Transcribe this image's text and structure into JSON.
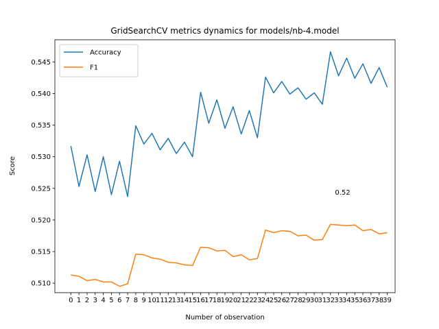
{
  "chart_data": {
    "type": "line",
    "title": "GridSearchCV metrics dynamics for models/nb-4.model",
    "xlabel": "Number of observation",
    "ylabel": "Score",
    "x": [
      0,
      1,
      2,
      3,
      4,
      5,
      6,
      7,
      8,
      9,
      10,
      11,
      12,
      13,
      14,
      15,
      16,
      17,
      18,
      19,
      20,
      21,
      22,
      23,
      24,
      25,
      26,
      27,
      28,
      29,
      30,
      31,
      32,
      33,
      34,
      35,
      36,
      37,
      38,
      39
    ],
    "xticks": [
      "0",
      "1",
      "2",
      "3",
      "4",
      "5",
      "6",
      "7",
      "8",
      "9",
      "10",
      "11",
      "12",
      "13",
      "14",
      "15",
      "16",
      "17",
      "18",
      "19",
      "20",
      "21",
      "22",
      "23",
      "24",
      "25",
      "26",
      "27",
      "28",
      "29",
      "30",
      "31",
      "32",
      "33",
      "34",
      "35",
      "36",
      "37",
      "38",
      "39"
    ],
    "ylim": [
      0.5085,
      0.5485
    ],
    "yticks": [
      0.51,
      0.515,
      0.52,
      0.525,
      0.53,
      0.535,
      0.54,
      0.545
    ],
    "ytick_labels": [
      "0.510",
      "0.515",
      "0.520",
      "0.525",
      "0.530",
      "0.535",
      "0.540",
      "0.545"
    ],
    "legend_position": "upper-left",
    "grid": false,
    "series": [
      {
        "name": "Accuracy",
        "color": "#1f77b4",
        "values": [
          0.5317,
          0.5253,
          0.5303,
          0.5245,
          0.53,
          0.524,
          0.5293,
          0.5237,
          0.5349,
          0.532,
          0.5337,
          0.5311,
          0.5329,
          0.5305,
          0.5323,
          0.53,
          0.5402,
          0.5353,
          0.539,
          0.5345,
          0.5379,
          0.5336,
          0.5373,
          0.533,
          0.5426,
          0.5401,
          0.5419,
          0.5399,
          0.5409,
          0.5391,
          0.5401,
          0.5383,
          0.5466,
          0.5428,
          0.5456,
          0.5424,
          0.5447,
          0.5416,
          0.5441,
          0.541
        ]
      },
      {
        "name": "F1",
        "color": "#ff7f0e",
        "values": [
          0.5113,
          0.5111,
          0.5104,
          0.5106,
          0.5102,
          0.5102,
          0.5095,
          0.5099,
          0.5146,
          0.5145,
          0.514,
          0.5138,
          0.5133,
          0.5132,
          0.5129,
          0.5128,
          0.5157,
          0.5156,
          0.5151,
          0.5152,
          0.5142,
          0.5145,
          0.5137,
          0.5139,
          0.5184,
          0.518,
          0.5183,
          0.5182,
          0.5175,
          0.5176,
          0.5168,
          0.5169,
          0.5193,
          0.5192,
          0.5191,
          0.5192,
          0.5183,
          0.5185,
          0.5178,
          0.518
        ]
      }
    ],
    "annotations": [
      {
        "text": "0.52",
        "x": 33.5,
        "y": 0.5244
      }
    ]
  }
}
